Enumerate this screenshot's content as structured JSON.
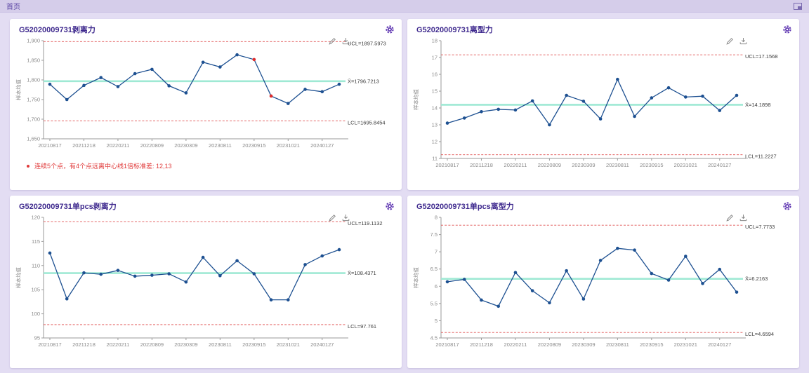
{
  "header": {
    "title": "首页",
    "right_icon": "restore-window-icon"
  },
  "colors": {
    "page_bg": "#e3ddf3",
    "header_bg": "#d5cdea",
    "accent_purple": "#5e35b1",
    "card_title": "#3f2a8e",
    "series_line": "#1d5091",
    "violation_point": "#e02b2b",
    "limit_line": "#e05252",
    "center_line": "#9fe9d4",
    "annotation_text": "#e03a3a"
  },
  "chart_data": [
    {
      "type": "line",
      "title": "G52020009731剥离力",
      "ylabel": "样本均值",
      "x_labels": [
        "20210817",
        "20211218",
        "20220211",
        "20220809",
        "20230309",
        "20230811",
        "20230915",
        "20231021",
        "20240127"
      ],
      "values": [
        1789,
        1750,
        1786,
        1806,
        1783,
        1816,
        1827,
        1785,
        1767,
        1845,
        1833,
        1864,
        1852,
        1759,
        1740,
        1776,
        1770,
        1789
      ],
      "violations": [
        12,
        13
      ],
      "ucl": 1897.5973,
      "center": 1796.7213,
      "lcl": 1695.8454,
      "labels": {
        "ucl": "UCL=1897.5973",
        "center": "X̄=1796.7213",
        "lcl": "LCL=1695.8454"
      },
      "ylim": [
        1650,
        1900
      ],
      "yticks": [
        {
          "v": 1900,
          "t": "1,900"
        },
        {
          "v": 1850,
          "t": "1,850"
        },
        {
          "v": 1800,
          "t": "1,800"
        },
        {
          "v": 1750,
          "t": "1,750"
        },
        {
          "v": 1700,
          "t": "1,700"
        },
        {
          "v": 1650,
          "t": "1,650"
        }
      ],
      "annotation": "连续5个点，有4个点远离中心线1倍标准差: 12,13"
    },
    {
      "type": "line",
      "title": "G52020009731离型力",
      "ylabel": "样本均值",
      "x_labels": [
        "20210817",
        "20211218",
        "20220211",
        "20220809",
        "20230309",
        "20230811",
        "20230915",
        "20231021",
        "20240127"
      ],
      "values": [
        13.1,
        13.4,
        13.78,
        13.92,
        13.88,
        14.42,
        13.0,
        14.75,
        14.4,
        13.35,
        15.7,
        13.5,
        14.6,
        15.2,
        14.65,
        14.7,
        13.85,
        14.75
      ],
      "violations": [],
      "ucl": 17.1568,
      "center": 14.1898,
      "lcl": 11.2227,
      "labels": {
        "ucl": "UCL=17.1568",
        "center": "X̄=14.1898",
        "lcl": "LCL=11.2227"
      },
      "ylim": [
        11,
        18
      ],
      "yticks": [
        {
          "v": 18,
          "t": "18"
        },
        {
          "v": 17,
          "t": "17"
        },
        {
          "v": 16,
          "t": "16"
        },
        {
          "v": 15,
          "t": "15"
        },
        {
          "v": 14,
          "t": "14"
        },
        {
          "v": 13,
          "t": "13"
        },
        {
          "v": 12,
          "t": "12"
        },
        {
          "v": 11,
          "t": "11"
        }
      ],
      "annotation": ""
    },
    {
      "type": "line",
      "title": "G52020009731单pcs剥离力",
      "ylabel": "样本均值",
      "x_labels": [
        "20210817",
        "20211218",
        "20220211",
        "20220809",
        "20230309",
        "20230811",
        "20230915",
        "20231021",
        "20240127"
      ],
      "values": [
        112.6,
        103.1,
        108.5,
        108.2,
        109.0,
        107.8,
        108.0,
        108.3,
        106.6,
        111.7,
        107.9,
        111.0,
        108.3,
        102.9,
        102.9,
        110.2,
        112.0,
        113.3
      ],
      "violations": [],
      "ucl": 119.1132,
      "center": 108.4371,
      "lcl": 97.761,
      "labels": {
        "ucl": "UCL=119.1132",
        "center": "X̄=108.4371",
        "lcl": "LCL=97.761"
      },
      "ylim": [
        95,
        120
      ],
      "yticks": [
        {
          "v": 120,
          "t": "120"
        },
        {
          "v": 115,
          "t": "115"
        },
        {
          "v": 110,
          "t": "110"
        },
        {
          "v": 105,
          "t": "105"
        },
        {
          "v": 100,
          "t": "100"
        },
        {
          "v": 95,
          "t": "95"
        }
      ],
      "annotation": ""
    },
    {
      "type": "line",
      "title": "G52020009731单pcs离型力",
      "ylabel": "样本均值",
      "x_labels": [
        "20210817",
        "20211218",
        "20220211",
        "20220809",
        "20230309",
        "20230811",
        "20230915",
        "20231021",
        "20240127"
      ],
      "values": [
        6.13,
        6.2,
        5.6,
        5.42,
        6.4,
        5.87,
        5.52,
        6.45,
        5.63,
        6.75,
        7.1,
        7.05,
        6.37,
        6.18,
        6.87,
        6.08,
        6.49,
        5.83
      ],
      "violations": [],
      "ucl": 7.7733,
      "center": 6.2163,
      "lcl": 4.6594,
      "labels": {
        "ucl": "UCL=7.7733",
        "center": "X̄=6.2163",
        "lcl": "LCL=4.6594"
      },
      "ylim": [
        4.5,
        8
      ],
      "yticks": [
        {
          "v": 8,
          "t": "8"
        },
        {
          "v": 7.5,
          "t": "7.5"
        },
        {
          "v": 7,
          "t": "7"
        },
        {
          "v": 6.5,
          "t": "6.5"
        },
        {
          "v": 6,
          "t": "6"
        },
        {
          "v": 5.5,
          "t": "5.5"
        },
        {
          "v": 5,
          "t": "5"
        },
        {
          "v": 4.5,
          "t": "4.5"
        }
      ],
      "annotation": ""
    }
  ]
}
